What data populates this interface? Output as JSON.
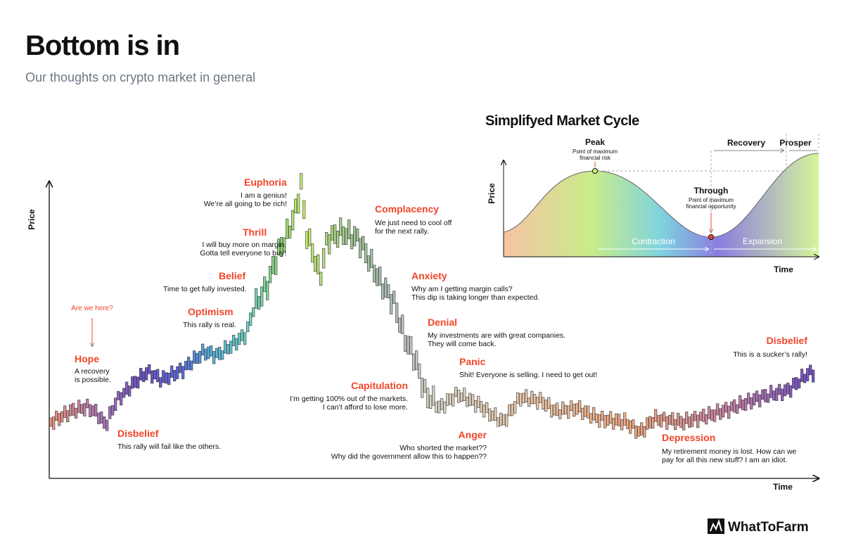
{
  "header": {
    "title": "Bottom is in",
    "subtitle": "Our thoughts on crypto market in general"
  },
  "main_chart": {
    "y_label": "Price",
    "x_label": "Time",
    "marker": "Are we here?",
    "stages": [
      {
        "name": "Hope",
        "text": [
          "A recovery",
          "is possible."
        ]
      },
      {
        "name": "Disbelief",
        "text": [
          "This rally will fail like the others."
        ]
      },
      {
        "name": "Optimism",
        "text": [
          "This rally is real."
        ]
      },
      {
        "name": "Belief",
        "text": [
          "Time to get fully invested."
        ]
      },
      {
        "name": "Thrill",
        "text": [
          "I will buy more on margin.",
          "Gotta tell everyone to buy!"
        ]
      },
      {
        "name": "Euphoria",
        "text": [
          "I am a genius!",
          "We’re all going to be rich!"
        ]
      },
      {
        "name": "Complacency",
        "text": [
          "We just need to cool off",
          "for the next rally."
        ]
      },
      {
        "name": "Anxiety",
        "text": [
          "Why am I getting margin calls?",
          "This dip is taking longer than expected."
        ]
      },
      {
        "name": "Denial",
        "text": [
          "My investments are with great companies.",
          "They will come back."
        ]
      },
      {
        "name": "Panic",
        "text": [
          "Shit! Everyone is selling. I need to get out!"
        ]
      },
      {
        "name": "Capitulation",
        "text": [
          "I’m getting 100% out of the markets.",
          "I can’t afford to lose more."
        ]
      },
      {
        "name": "Anger",
        "text": [
          "Who shorted the market??",
          "Why did the government allow this to happen??"
        ]
      },
      {
        "name": "Depression",
        "text": [
          "My retirement money is lost. How can we",
          "pay for all this new stuff? I am an idiot."
        ]
      },
      {
        "name": "Disbelief",
        "text": [
          "This is a sucker’s rally!"
        ]
      }
    ]
  },
  "inset": {
    "title": "Simplifyed Market Cycle",
    "peak": {
      "name": "Peak",
      "text": [
        "Point of maximum",
        "financial risk"
      ]
    },
    "through": {
      "name": "Through",
      "text": [
        "Point of maximum",
        "financial opportunity"
      ]
    },
    "recovery": "Recovery",
    "prosper": "Prosper",
    "contraction": "Contraction",
    "expansion": "Expansion",
    "y_label": "Price",
    "x_label": "Time"
  },
  "logo": "WhatToFarm"
}
